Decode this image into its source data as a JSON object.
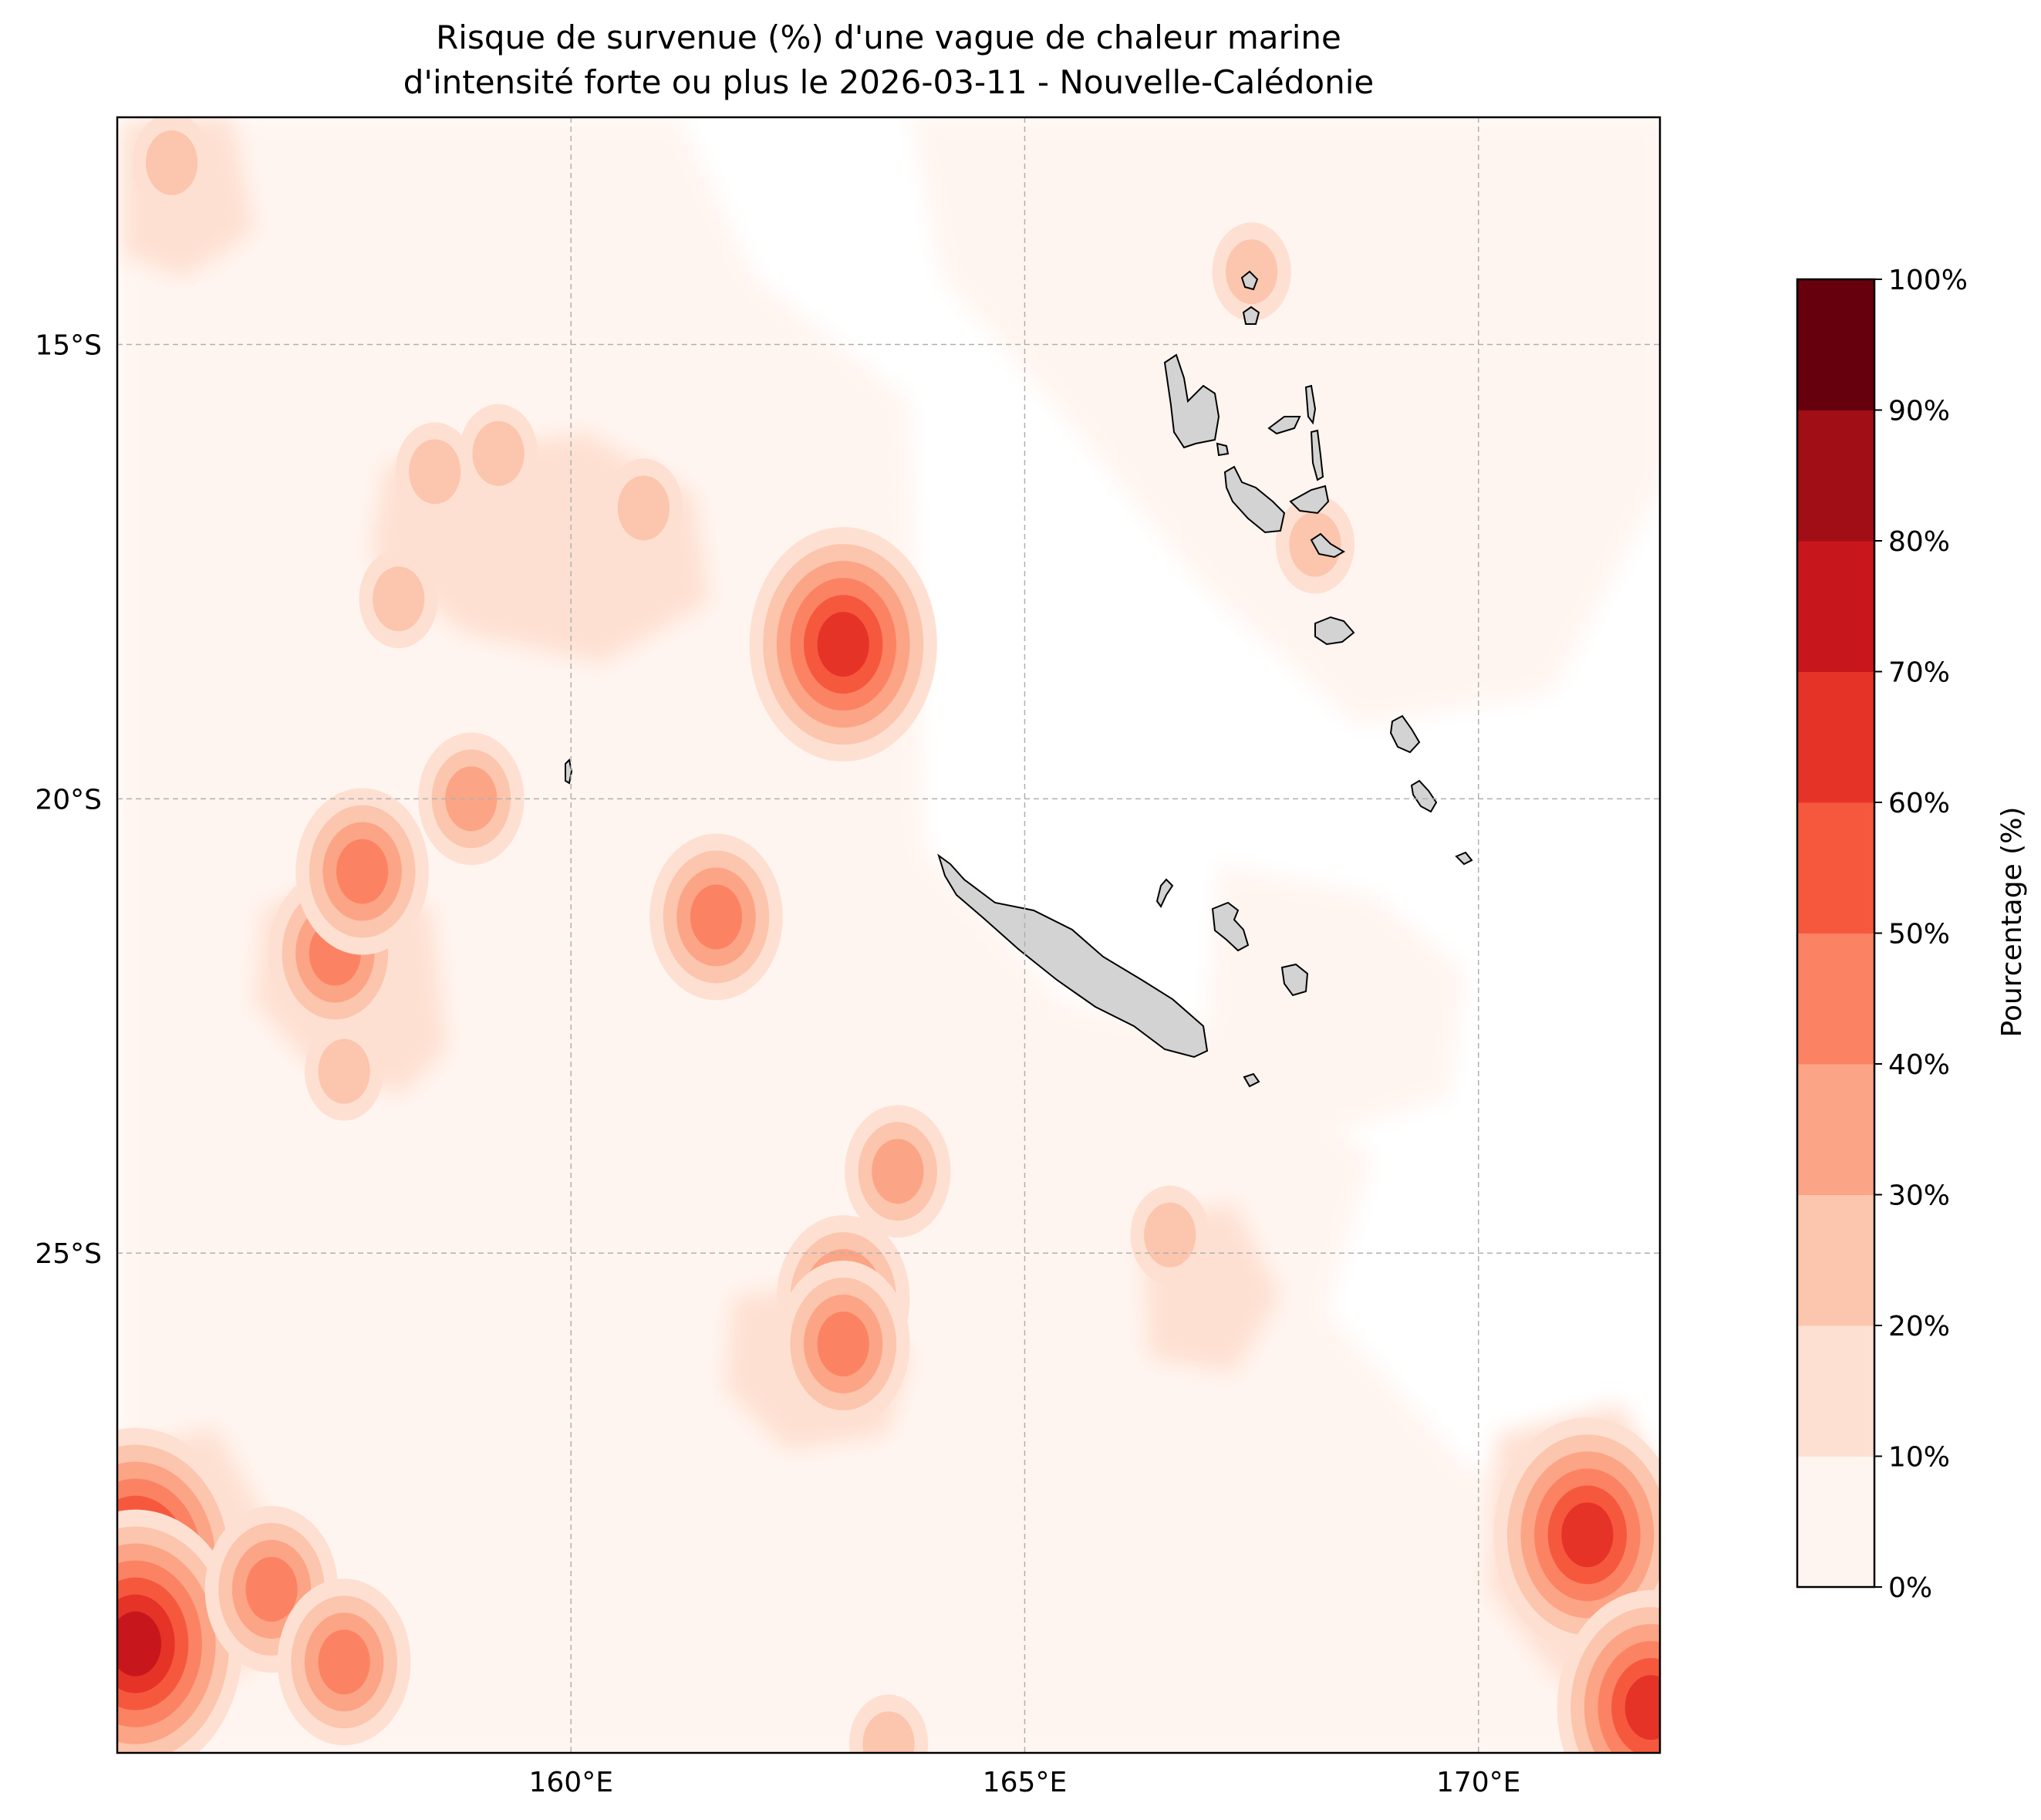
{
  "title": {
    "line1": "Risque de survenue (%) d'une vague de chaleur marine",
    "line2": "d'intensité forte ou plus le 2026-03-11 - Nouvelle-Calédonie"
  },
  "map": {
    "type": "heatmap",
    "projection": "PlateCarree",
    "lon_range": [
      155.0,
      172.0
    ],
    "lat_range": [
      -30.5,
      -12.5
    ],
    "gridlines": true,
    "lon_ticks": [
      {
        "value": 160,
        "label": "160°E"
      },
      {
        "value": 165,
        "label": "165°E"
      },
      {
        "value": 170,
        "label": "170°E"
      }
    ],
    "lat_ticks": [
      {
        "value": -15,
        "label": "15°S"
      },
      {
        "value": -20,
        "label": "20°S"
      },
      {
        "value": -25,
        "label": "25°S"
      }
    ],
    "land_color": "#d3d3d3",
    "hotspots": [
      {
        "lon": 155.2,
        "lat": -28.4,
        "value": 70
      },
      {
        "lon": 155.2,
        "lat": -29.3,
        "value": 75
      },
      {
        "lon": 156.7,
        "lat": -28.7,
        "value": 40
      },
      {
        "lon": 157.5,
        "lat": -29.5,
        "value": 40
      },
      {
        "lon": 157.4,
        "lat": -21.7,
        "value": 45
      },
      {
        "lon": 157.7,
        "lat": -20.8,
        "value": 40
      },
      {
        "lon": 158.1,
        "lat": -17.8,
        "value": 25
      },
      {
        "lon": 157.5,
        "lat": -23.0,
        "value": 25
      },
      {
        "lon": 158.9,
        "lat": -20.0,
        "value": 35
      },
      {
        "lon": 158.5,
        "lat": -16.4,
        "value": 25
      },
      {
        "lon": 159.2,
        "lat": -16.2,
        "value": 25
      },
      {
        "lon": 160.8,
        "lat": -16.8,
        "value": 25
      },
      {
        "lon": 155.6,
        "lat": -13.0,
        "value": 25
      },
      {
        "lon": 161.6,
        "lat": -21.3,
        "value": 45
      },
      {
        "lon": 163.0,
        "lat": -18.3,
        "value": 60
      },
      {
        "lon": 163.0,
        "lat": -25.5,
        "value": 45
      },
      {
        "lon": 163.0,
        "lat": -26.0,
        "value": 40
      },
      {
        "lon": 163.6,
        "lat": -24.1,
        "value": 35
      },
      {
        "lon": 166.6,
        "lat": -24.8,
        "value": 25
      },
      {
        "lon": 171.2,
        "lat": -28.1,
        "value": 60
      },
      {
        "lon": 171.9,
        "lat": -30.0,
        "value": 60
      },
      {
        "lon": 167.5,
        "lat": -14.2,
        "value": 25
      },
      {
        "lon": 168.2,
        "lat": -17.2,
        "value": 25
      },
      {
        "lon": 163.5,
        "lat": -30.4,
        "value": 25
      }
    ],
    "islands": [
      "Nouvelle-Calédonie (Grande Terre)",
      "Île des Pins",
      "Maré",
      "Lifou",
      "Ouvéa",
      "Vanuatu"
    ]
  },
  "colorbar": {
    "label": "Pourcentage (%)",
    "cmap": "Reds",
    "levels": [
      0,
      10,
      20,
      30,
      40,
      50,
      60,
      70,
      80,
      90,
      100
    ],
    "tick_labels": [
      "0%",
      "10%",
      "20%",
      "30%",
      "40%",
      "50%",
      "60%",
      "70%",
      "80%",
      "90%",
      "100%"
    ],
    "colors": [
      "#fff5f0",
      "#fee0d2",
      "#fcc5ad",
      "#fca486",
      "#fb8363",
      "#f6583e",
      "#e63328",
      "#c8171c",
      "#a10e15",
      "#67000d"
    ]
  }
}
